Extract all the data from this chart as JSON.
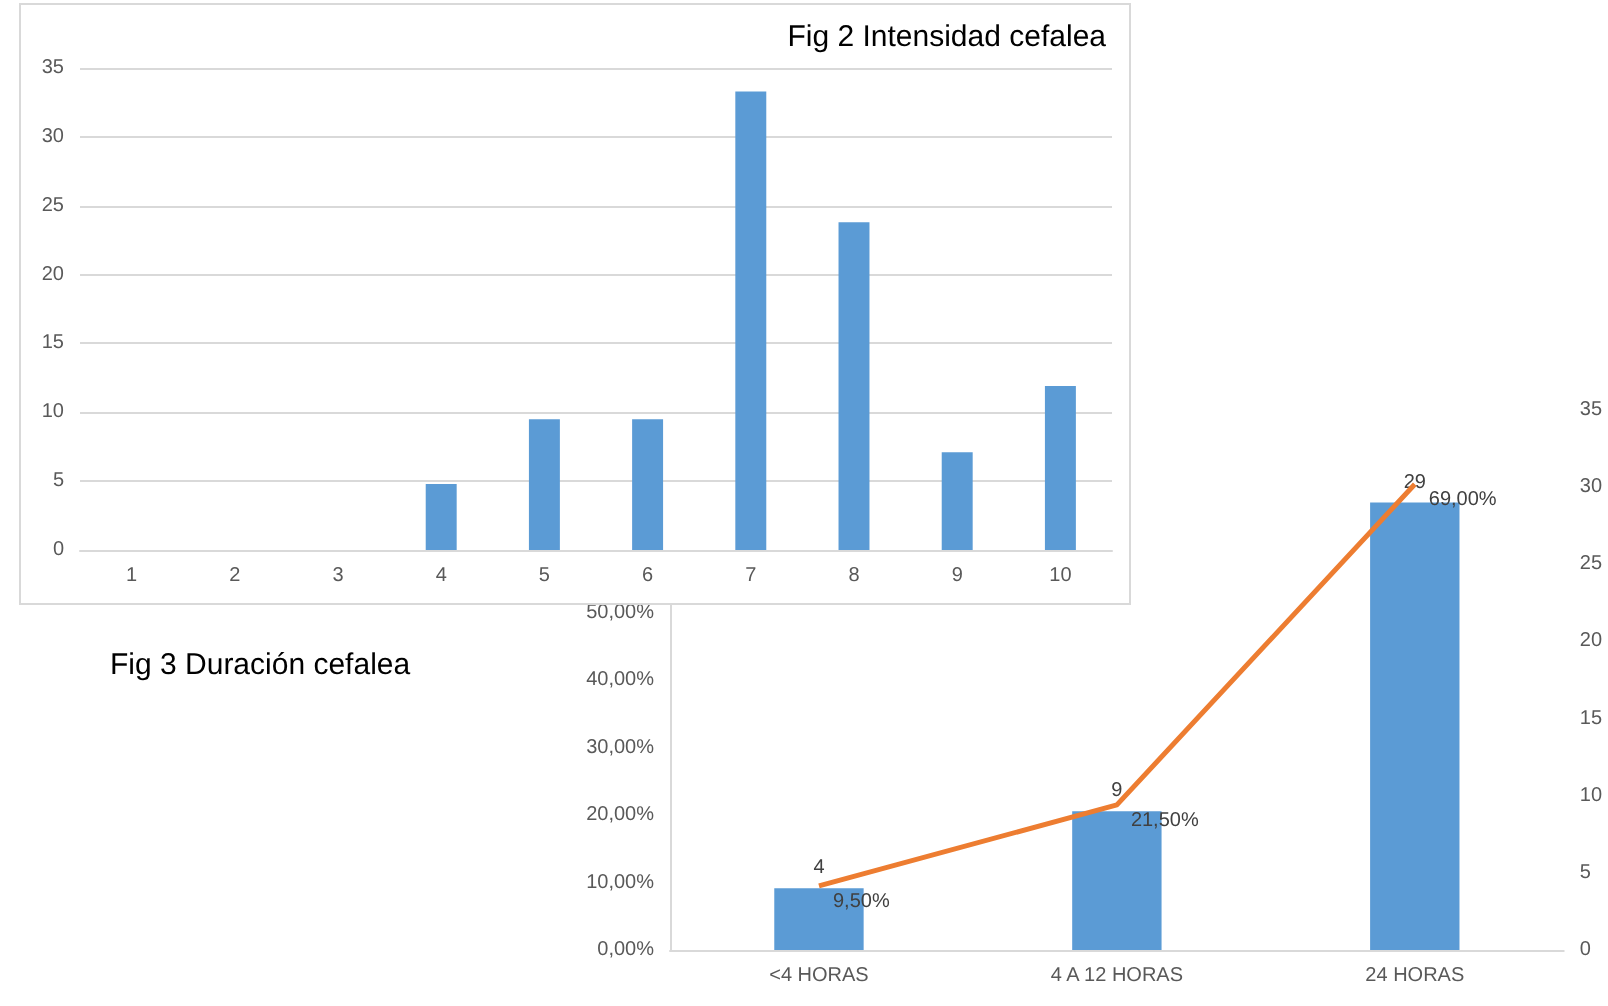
{
  "chart_data": [
    {
      "type": "bar",
      "title": "Fig 2 Intensidad cefalea",
      "categories": [
        "1",
        "2",
        "3",
        "4",
        "5",
        "6",
        "7",
        "8",
        "9",
        "10"
      ],
      "series": [
        {
          "color": "#5b9bd5",
          "values": [
            0,
            0,
            0,
            4.8,
            9.5,
            9.5,
            33.3,
            23.8,
            7.1,
            11.9
          ]
        }
      ],
      "ylim": [
        0,
        35
      ],
      "yticks": [
        0,
        5,
        10,
        15,
        20,
        25,
        30,
        35
      ],
      "grid": "y"
    },
    {
      "type": "bar",
      "title": "Fig 3 Duración cefalea",
      "categories": [
        "<4 HORAS",
        "4 A 12 HORAS",
        "24 HORAS"
      ],
      "series": [
        {
          "axis": "y2",
          "color": "#5b9bd5",
          "values": [
            4,
            9,
            29
          ],
          "value_labels": [
            "4",
            "9",
            "29"
          ]
        },
        {
          "type": "line",
          "color": "#ed7d31",
          "values": [
            9.5,
            21.5,
            69
          ],
          "value_labels": [
            "9,50%",
            "21,50%",
            "69,00%"
          ],
          "marker": "none"
        }
      ],
      "ylim": [
        0,
        80
      ],
      "yticks": [
        {
          "value": 0,
          "label": "0,00%"
        },
        {
          "value": 10,
          "label": "10,00%"
        },
        {
          "value": 20,
          "label": "20,00%"
        },
        {
          "value": 30,
          "label": "30,00%"
        },
        {
          "value": 40,
          "label": "40,00%"
        },
        {
          "value": 50,
          "label": "50,00%"
        }
      ],
      "y2lim": [
        0,
        35
      ],
      "y2ticks": [
        0,
        5,
        10,
        15,
        20,
        25,
        30,
        35
      ],
      "grid": false
    }
  ]
}
